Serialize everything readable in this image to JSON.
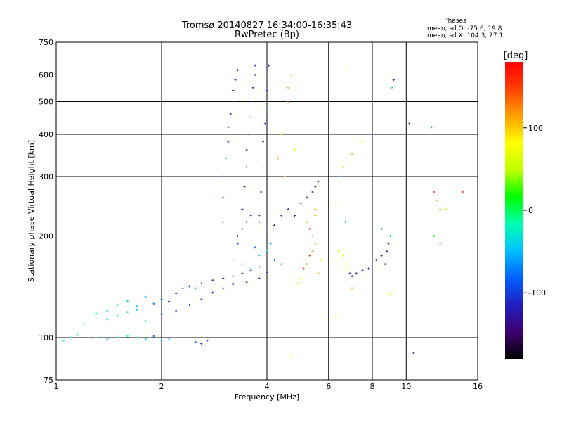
{
  "chart_data": {
    "type": "scatter",
    "title": "Tromsø 20140827 16:34:00-16:35:43",
    "subtitle": "RwPretec (Bp)",
    "xlabel": "Frequency [MHz]",
    "ylabel": "Stationary phase Virtual Height [km]",
    "x_scale": "log",
    "y_scale": "log",
    "xlim": [
      1,
      16
    ],
    "ylim": [
      75,
      750
    ],
    "x_ticks": [
      1,
      2,
      4,
      6,
      8,
      10,
      16
    ],
    "x_gridlines": [
      2,
      4,
      6,
      8,
      10
    ],
    "y_ticks": [
      75,
      100,
      200,
      300,
      400,
      500,
      600,
      750
    ],
    "y_gridlines": [
      100,
      200,
      300,
      400,
      500,
      600
    ],
    "grid": true,
    "annotations": [
      "Phases",
      "mean, sd,O: -75.6, 19.8",
      "mean, sd,X: 104.3, 27.1"
    ],
    "colorbar": {
      "label": "[deg]",
      "ticks": [
        -100,
        0,
        100
      ],
      "range": [
        -180,
        180
      ],
      "colors": [
        "#000000",
        "#400070",
        "#2020c0",
        "#0060ff",
        "#00c0ff",
        "#00ffb0",
        "#00ff00",
        "#c0ff00",
        "#ffff00",
        "#ffa000",
        "#ff4000",
        "#ff0000"
      ]
    },
    "series": [
      {
        "values": [
          [
            1.05,
            98,
            -30
          ],
          [
            1.1,
            100,
            -20
          ],
          [
            1.15,
            102,
            -25
          ],
          [
            1.2,
            110,
            -35
          ],
          [
            1.3,
            118,
            -30
          ],
          [
            1.4,
            120,
            -40
          ],
          [
            1.5,
            125,
            -30
          ],
          [
            1.6,
            128,
            -45
          ],
          [
            1.7,
            124,
            -35
          ],
          [
            1.8,
            132,
            -60
          ],
          [
            1.9,
            126,
            -80
          ],
          [
            2.0,
            130,
            -70
          ],
          [
            2.1,
            128,
            -100
          ],
          [
            2.2,
            135,
            -90
          ],
          [
            2.3,
            140,
            -80
          ],
          [
            2.4,
            142,
            -75
          ],
          [
            2.5,
            140,
            -50
          ],
          [
            2.6,
            145,
            -90
          ],
          [
            2.8,
            148,
            -100
          ],
          [
            3.0,
            150,
            -110
          ],
          [
            3.2,
            152,
            -120
          ],
          [
            3.4,
            155,
            -110
          ],
          [
            3.6,
            158,
            -100
          ],
          [
            3.8,
            162,
            -90
          ],
          [
            1.4,
            113,
            -20
          ],
          [
            1.5,
            116,
            -30
          ],
          [
            1.6,
            119,
            -50
          ],
          [
            1.7,
            121,
            -40
          ],
          [
            1.8,
            112,
            -60
          ],
          [
            2.0,
            117,
            -80
          ],
          [
            2.2,
            120,
            -100
          ],
          [
            2.4,
            125,
            -90
          ],
          [
            2.6,
            130,
            -80
          ],
          [
            2.8,
            136,
            -100
          ],
          [
            3.0,
            140,
            -110
          ],
          [
            3.2,
            144,
            -120
          ],
          [
            3.5,
            146,
            -130
          ],
          [
            3.8,
            150,
            -140
          ],
          [
            4.0,
            156,
            -120
          ],
          [
            1.3,
            100,
            -30
          ],
          [
            1.4,
            99,
            -40
          ],
          [
            1.5,
            100,
            -20
          ],
          [
            1.6,
            101,
            -30
          ],
          [
            1.7,
            100,
            -35
          ],
          [
            1.8,
            99,
            -60
          ],
          [
            1.9,
            101,
            -70
          ],
          [
            2.0,
            98,
            -50
          ],
          [
            2.1,
            99,
            -60
          ],
          [
            2.2,
            100,
            -80
          ],
          [
            2.5,
            97,
            -90
          ],
          [
            2.6,
            96,
            -100
          ],
          [
            2.7,
            98,
            -110
          ],
          [
            3.0,
            220,
            -80
          ],
          [
            3.0,
            260,
            -90
          ],
          [
            3.0,
            300,
            -100
          ],
          [
            3.05,
            340,
            -95
          ],
          [
            3.1,
            380,
            -100
          ],
          [
            3.1,
            420,
            -110
          ],
          [
            3.15,
            460,
            -105
          ],
          [
            3.2,
            500,
            -100
          ],
          [
            3.2,
            540,
            -110
          ],
          [
            3.25,
            580,
            -120
          ],
          [
            3.3,
            620,
            -110
          ],
          [
            3.4,
            240,
            -110
          ],
          [
            3.45,
            280,
            -120
          ],
          [
            3.5,
            320,
            -100
          ],
          [
            3.5,
            360,
            -110
          ],
          [
            3.55,
            400,
            -100
          ],
          [
            3.6,
            450,
            -90
          ],
          [
            3.6,
            500,
            -110
          ],
          [
            3.65,
            550,
            -120
          ],
          [
            3.7,
            600,
            -100
          ],
          [
            3.7,
            640,
            -110
          ],
          [
            3.8,
            230,
            -100
          ],
          [
            3.85,
            270,
            -110
          ],
          [
            3.9,
            320,
            -90
          ],
          [
            3.9,
            380,
            -100
          ],
          [
            3.95,
            430,
            -110
          ],
          [
            4.0,
            480,
            -90
          ],
          [
            4.0,
            540,
            -100
          ],
          [
            4.0,
            600,
            -110
          ],
          [
            4.05,
            640,
            -120
          ],
          [
            3.3,
            200,
            -120
          ],
          [
            3.4,
            210,
            -130
          ],
          [
            3.5,
            220,
            -120
          ],
          [
            3.6,
            230,
            -110
          ],
          [
            3.8,
            220,
            -100
          ],
          [
            4.0,
            210,
            -120
          ],
          [
            4.2,
            215,
            -100
          ],
          [
            4.4,
            230,
            -90
          ],
          [
            4.6,
            240,
            -110
          ],
          [
            4.8,
            230,
            -100
          ],
          [
            5.0,
            250,
            -120
          ],
          [
            5.2,
            260,
            -110
          ],
          [
            5.4,
            270,
            -120
          ],
          [
            5.5,
            280,
            -100
          ],
          [
            5.6,
            290,
            -110
          ],
          [
            3.2,
            170,
            -40
          ],
          [
            3.4,
            165,
            -60
          ],
          [
            3.6,
            160,
            -30
          ],
          [
            3.8,
            175,
            -50
          ],
          [
            4.0,
            180,
            -40
          ],
          [
            4.2,
            170,
            -70
          ],
          [
            4.4,
            165,
            -60
          ],
          [
            3.3,
            190,
            -80
          ],
          [
            3.7,
            185,
            -90
          ],
          [
            4.1,
            190,
            -60
          ],
          [
            4.4,
            400,
            100
          ],
          [
            4.5,
            450,
            120
          ],
          [
            4.6,
            500,
            140
          ],
          [
            4.6,
            550,
            110
          ],
          [
            4.7,
            600,
            130
          ],
          [
            4.8,
            360,
            90
          ],
          [
            4.5,
            300,
            150
          ],
          [
            4.3,
            340,
            130
          ],
          [
            5.0,
            170,
            130
          ],
          [
            5.1,
            160,
            150
          ],
          [
            5.2,
            165,
            120
          ],
          [
            5.3,
            175,
            140
          ],
          [
            5.4,
            180,
            110
          ],
          [
            5.5,
            190,
            130
          ],
          [
            5.4,
            200,
            120
          ],
          [
            5.3,
            210,
            140
          ],
          [
            5.2,
            220,
            100
          ],
          [
            5.5,
            230,
            120
          ],
          [
            5.6,
            155,
            110
          ],
          [
            5.7,
            170,
            90
          ],
          [
            5.0,
            150,
            80
          ],
          [
            4.9,
            145,
            60
          ],
          [
            5.5,
            240,
            110
          ],
          [
            6.4,
            180,
            60
          ],
          [
            6.5,
            170,
            80
          ],
          [
            6.6,
            175,
            70
          ],
          [
            6.7,
            165,
            90
          ],
          [
            6.8,
            160,
            70
          ],
          [
            6.9,
            155,
            -120
          ],
          [
            7.0,
            152,
            -140
          ],
          [
            7.2,
            155,
            -130
          ],
          [
            7.5,
            158,
            -120
          ],
          [
            7.8,
            160,
            -110
          ],
          [
            8.0,
            165,
            -130
          ],
          [
            8.2,
            170,
            -120
          ],
          [
            8.5,
            175,
            -140
          ],
          [
            8.7,
            165,
            -130
          ],
          [
            8.8,
            180,
            -120
          ],
          [
            8.9,
            190,
            -110
          ],
          [
            6.5,
            300,
            -80
          ],
          [
            6.6,
            320,
            50
          ],
          [
            6.3,
            250,
            90
          ],
          [
            6.7,
            220,
            -60
          ],
          [
            7.0,
            350,
            100
          ],
          [
            7.5,
            380,
            80
          ],
          [
            8.0,
            400,
            -100
          ],
          [
            8.5,
            210,
            -90
          ],
          [
            9.0,
            200,
            20
          ],
          [
            6.8,
            630,
            70
          ],
          [
            9.2,
            580,
            -110
          ],
          [
            9.1,
            550,
            -60
          ],
          [
            10.2,
            430,
            -120
          ],
          [
            11.8,
            420,
            -90
          ],
          [
            12.0,
            270,
            150
          ],
          [
            12.2,
            255,
            120
          ],
          [
            12.5,
            240,
            100
          ],
          [
            13.0,
            240,
            40
          ],
          [
            14.5,
            270,
            140
          ],
          [
            12.0,
            200,
            30
          ],
          [
            12.5,
            190,
            -50
          ],
          [
            10.5,
            90,
            -130
          ],
          [
            9.0,
            135,
            80
          ],
          [
            4.7,
            88,
            80
          ],
          [
            6.3,
            115,
            90
          ],
          [
            7.0,
            140,
            100
          ]
        ]
      }
    ]
  }
}
